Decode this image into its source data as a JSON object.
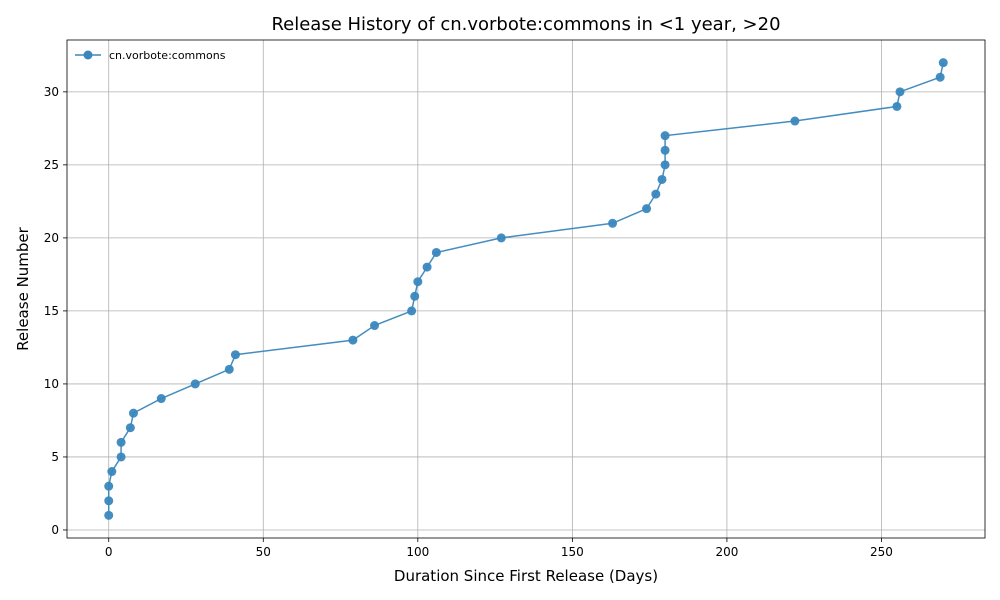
{
  "chart_data": {
    "type": "line",
    "title": "Release History of cn.vorbote:commons in <1 year, >20",
    "xlabel": "Duration Since First Release (Days)",
    "ylabel": "Release Number",
    "xlim": [
      -13.5,
      283.5
    ],
    "ylim": [
      -0.55,
      33.55
    ],
    "xticks": [
      0,
      50,
      100,
      150,
      200,
      250
    ],
    "yticks": [
      0,
      5,
      10,
      15,
      20,
      25,
      30
    ],
    "grid": true,
    "legend_position": "top-left",
    "series": [
      {
        "name": "cn.vorbote:commons",
        "color": "#3a87bd",
        "x": [
          0,
          0,
          0,
          1,
          4,
          4,
          7,
          8,
          17,
          28,
          39,
          41,
          79,
          86,
          98,
          99,
          100,
          103,
          106,
          127,
          163,
          174,
          177,
          179,
          180,
          180,
          180,
          222,
          255,
          256,
          269,
          270
        ],
        "y": [
          1,
          2,
          3,
          4,
          5,
          6,
          7,
          8,
          9,
          10,
          11,
          12,
          13,
          14,
          15,
          16,
          17,
          18,
          19,
          20,
          21,
          22,
          23,
          24,
          25,
          26,
          27,
          28,
          29,
          30,
          31,
          32
        ]
      }
    ]
  }
}
